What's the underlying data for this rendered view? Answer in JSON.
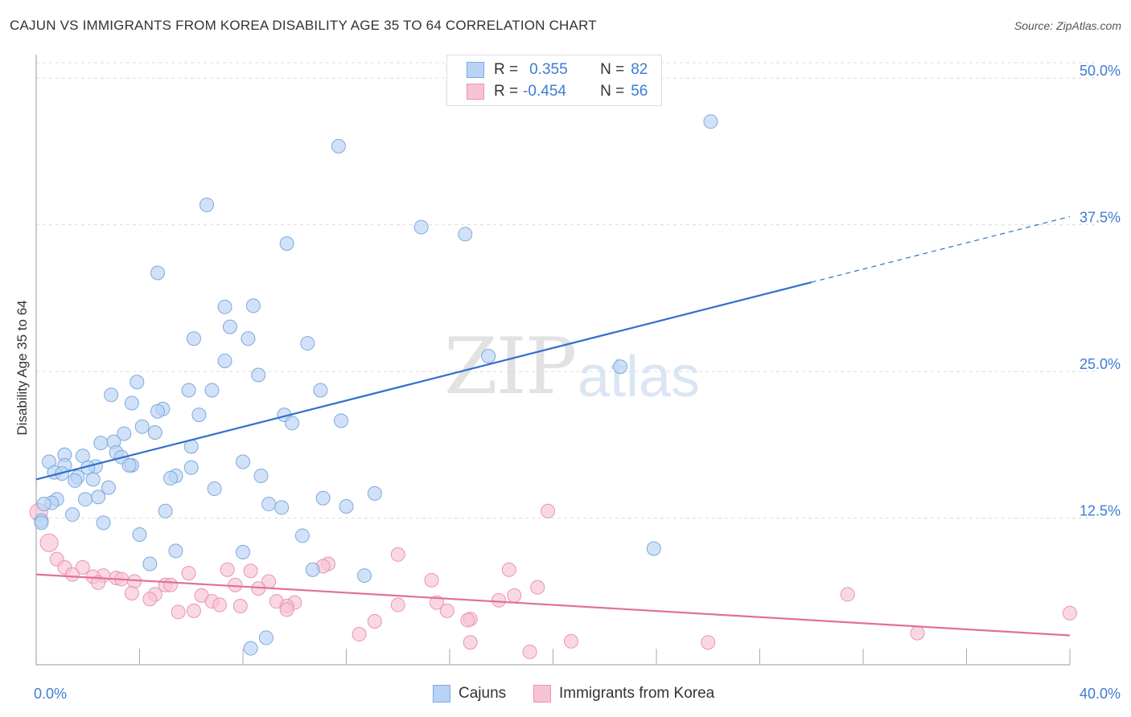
{
  "title": "CAJUN VS IMMIGRANTS FROM KOREA DISABILITY AGE 35 TO 64 CORRELATION CHART",
  "source": "Source: ZipAtlas.com",
  "watermark": {
    "zip": "ZIP",
    "atlas": "atlas"
  },
  "colors": {
    "cajuns_fill": "#b8d3f5",
    "cajuns_stroke": "#7ea9de",
    "cajuns_line": "#3070cc",
    "korea_fill": "#f7c3d3",
    "korea_stroke": "#e994b0",
    "korea_line": "#e07099",
    "axis_label": "#3d7cd1"
  },
  "legend_top": {
    "rows": [
      {
        "r_label": "R =",
        "r_value": " 0.355",
        "n_label": "N =",
        "n_value": "82"
      },
      {
        "r_label": "R =",
        "r_value": "-0.454",
        "n_label": "N =",
        "n_value": "56"
      }
    ]
  },
  "chart_data": {
    "type": "scatter",
    "title": "CAJUN VS IMMIGRANTS FROM KOREA DISABILITY AGE 35 TO 64 CORRELATION CHART",
    "xlabel": "",
    "ylabel": "Disability Age 35 to 64",
    "xlim": [
      0,
      40
    ],
    "ylim": [
      0,
      52
    ],
    "x_tick_labels": [
      "0.0%",
      "40.0%"
    ],
    "y_ticks": [
      12.5,
      25.0,
      37.5,
      50.0
    ],
    "y_tick_labels": [
      "12.5%",
      "25.0%",
      "37.5%",
      "50.0%"
    ],
    "legend": [
      "Cajuns",
      "Immigrants from Korea"
    ],
    "series": [
      {
        "name": "Cajuns",
        "r": 0.355,
        "n": 82,
        "trend": {
          "x0": 0,
          "y0": 15.8,
          "x1": 30,
          "y1": 32.6,
          "x_end_dashed": 40,
          "y_end_dashed": 38.2
        },
        "points": [
          [
            26.1,
            46.3
          ],
          [
            11.7,
            44.2
          ],
          [
            6.6,
            39.2
          ],
          [
            14.9,
            37.3
          ],
          [
            16.6,
            36.7
          ],
          [
            9.7,
            35.9
          ],
          [
            4.7,
            33.4
          ],
          [
            7.3,
            30.5
          ],
          [
            8.4,
            30.6
          ],
          [
            7.5,
            28.8
          ],
          [
            8.2,
            27.8
          ],
          [
            6.1,
            27.8
          ],
          [
            10.5,
            27.4
          ],
          [
            7.3,
            25.9
          ],
          [
            17.5,
            26.3
          ],
          [
            22.6,
            25.4
          ],
          [
            8.6,
            24.7
          ],
          [
            3.9,
            24.1
          ],
          [
            5.9,
            23.4
          ],
          [
            6.8,
            23.4
          ],
          [
            11.0,
            23.4
          ],
          [
            2.9,
            23.0
          ],
          [
            3.7,
            22.3
          ],
          [
            4.9,
            21.8
          ],
          [
            4.7,
            21.6
          ],
          [
            6.3,
            21.3
          ],
          [
            9.6,
            21.3
          ],
          [
            9.9,
            20.6
          ],
          [
            11.8,
            20.8
          ],
          [
            4.1,
            20.3
          ],
          [
            4.6,
            19.8
          ],
          [
            3.4,
            19.7
          ],
          [
            3.0,
            19.0
          ],
          [
            2.5,
            18.9
          ],
          [
            6.0,
            18.6
          ],
          [
            3.1,
            18.1
          ],
          [
            3.3,
            17.7
          ],
          [
            1.1,
            17.9
          ],
          [
            1.8,
            17.8
          ],
          [
            0.5,
            17.3
          ],
          [
            1.1,
            17.0
          ],
          [
            3.7,
            17.0
          ],
          [
            2.3,
            16.9
          ],
          [
            2.0,
            16.8
          ],
          [
            3.6,
            17.0
          ],
          [
            8.0,
            17.3
          ],
          [
            6.0,
            16.8
          ],
          [
            0.7,
            16.4
          ],
          [
            1.0,
            16.3
          ],
          [
            1.6,
            16.0
          ],
          [
            5.4,
            16.1
          ],
          [
            5.2,
            15.9
          ],
          [
            2.2,
            15.8
          ],
          [
            1.5,
            15.7
          ],
          [
            8.7,
            16.1
          ],
          [
            2.8,
            15.1
          ],
          [
            6.9,
            15.0
          ],
          [
            2.4,
            14.3
          ],
          [
            1.9,
            14.1
          ],
          [
            0.8,
            14.1
          ],
          [
            0.6,
            13.8
          ],
          [
            13.1,
            14.6
          ],
          [
            0.3,
            13.7
          ],
          [
            11.1,
            14.2
          ],
          [
            9.0,
            13.7
          ],
          [
            9.5,
            13.4
          ],
          [
            12.0,
            13.5
          ],
          [
            5.0,
            13.1
          ],
          [
            1.4,
            12.8
          ],
          [
            2.6,
            12.1
          ],
          [
            0.2,
            12.3
          ],
          [
            0.2,
            12.1
          ],
          [
            4.0,
            11.1
          ],
          [
            10.3,
            11.0
          ],
          [
            5.4,
            9.7
          ],
          [
            8.0,
            9.6
          ],
          [
            23.9,
            9.9
          ],
          [
            4.4,
            8.6
          ],
          [
            10.7,
            8.1
          ],
          [
            12.7,
            7.6
          ],
          [
            8.9,
            2.3
          ],
          [
            8.3,
            1.4
          ]
        ]
      },
      {
        "name": "Immigrants from Korea",
        "r": -0.454,
        "n": 56,
        "trend": {
          "x0": 0,
          "y0": 7.7,
          "x1": 40,
          "y1": 2.5
        },
        "points": [
          [
            0.1,
            13.0
          ],
          [
            0.5,
            10.4
          ],
          [
            19.8,
            13.1
          ],
          [
            0.8,
            9.0
          ],
          [
            1.1,
            8.3
          ],
          [
            1.8,
            8.3
          ],
          [
            14.0,
            9.4
          ],
          [
            11.3,
            8.6
          ],
          [
            11.1,
            8.4
          ],
          [
            18.3,
            8.1
          ],
          [
            7.4,
            8.1
          ],
          [
            8.3,
            8.0
          ],
          [
            5.9,
            7.8
          ],
          [
            1.4,
            7.7
          ],
          [
            2.6,
            7.6
          ],
          [
            2.2,
            7.5
          ],
          [
            3.1,
            7.4
          ],
          [
            3.3,
            7.3
          ],
          [
            3.8,
            7.1
          ],
          [
            9.0,
            7.1
          ],
          [
            15.3,
            7.2
          ],
          [
            2.4,
            7.0
          ],
          [
            5.0,
            6.8
          ],
          [
            5.2,
            6.8
          ],
          [
            7.7,
            6.8
          ],
          [
            19.4,
            6.6
          ],
          [
            8.6,
            6.5
          ],
          [
            3.7,
            6.1
          ],
          [
            4.6,
            6.0
          ],
          [
            6.4,
            5.9
          ],
          [
            31.4,
            6.0
          ],
          [
            18.5,
            5.9
          ],
          [
            4.4,
            5.6
          ],
          [
            6.8,
            5.4
          ],
          [
            17.9,
            5.5
          ],
          [
            9.3,
            5.4
          ],
          [
            15.5,
            5.3
          ],
          [
            10.0,
            5.3
          ],
          [
            9.7,
            5.0
          ],
          [
            7.1,
            5.1
          ],
          [
            14.0,
            5.1
          ],
          [
            7.9,
            5.0
          ],
          [
            9.7,
            4.7
          ],
          [
            6.1,
            4.6
          ],
          [
            15.9,
            4.6
          ],
          [
            5.5,
            4.5
          ],
          [
            40.0,
            4.4
          ],
          [
            16.8,
            3.9
          ],
          [
            16.7,
            3.8
          ],
          [
            13.1,
            3.7
          ],
          [
            12.5,
            2.6
          ],
          [
            34.1,
            2.7
          ],
          [
            20.7,
            2.0
          ],
          [
            26.0,
            1.9
          ],
          [
            16.8,
            1.9
          ],
          [
            19.1,
            1.1
          ]
        ]
      }
    ]
  }
}
